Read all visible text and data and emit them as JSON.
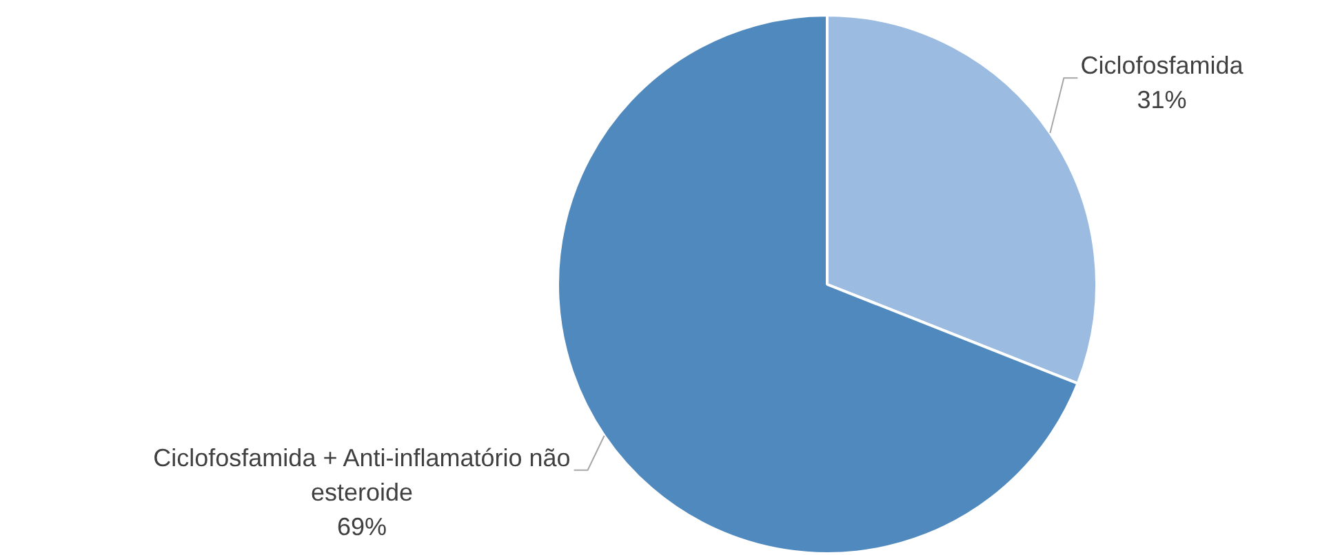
{
  "chart_data": {
    "type": "pie",
    "categories": [
      "Ciclofosfamida",
      "Ciclofosfamida + Anti-inflamatório não esteroide"
    ],
    "values": [
      31,
      69
    ],
    "value_labels": [
      "31%",
      "69%"
    ],
    "colors": [
      "#9bbbe0",
      "#4f89bd"
    ],
    "legend": false
  }
}
